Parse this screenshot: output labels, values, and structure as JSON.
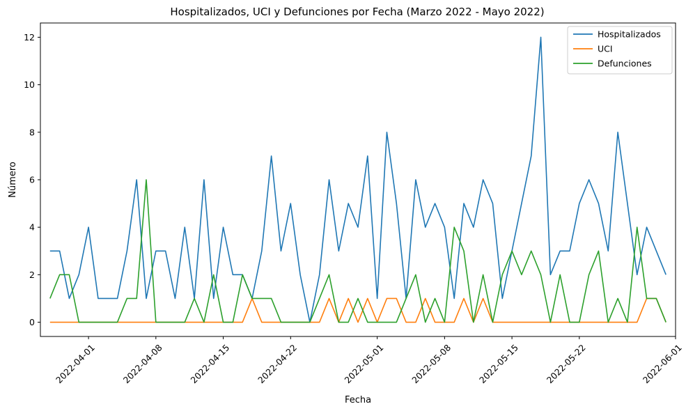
{
  "chart_data": {
    "type": "line",
    "title": "Hospitalizados, UCI y Defunciones por Fecha (Marzo 2022 - Mayo 2022)",
    "xlabel": "Fecha",
    "ylabel": "Número",
    "xlim": [
      "2022-03-27",
      "2022-06-01"
    ],
    "ylim": [
      -0.6,
      12.6
    ],
    "x_ticks": [
      "2022-04-01",
      "2022-04-08",
      "2022-04-15",
      "2022-04-22",
      "2022-05-01",
      "2022-05-08",
      "2022-05-15",
      "2022-05-22",
      "2022-06-01"
    ],
    "y_ticks": [
      0,
      2,
      4,
      6,
      8,
      10,
      12
    ],
    "grid": false,
    "legend_position": "top-right",
    "x": [
      "2022-03-28",
      "2022-03-29",
      "2022-03-30",
      "2022-03-31",
      "2022-04-01",
      "2022-04-02",
      "2022-04-03",
      "2022-04-04",
      "2022-04-05",
      "2022-04-06",
      "2022-04-07",
      "2022-04-08",
      "2022-04-09",
      "2022-04-10",
      "2022-04-11",
      "2022-04-12",
      "2022-04-13",
      "2022-04-14",
      "2022-04-15",
      "2022-04-16",
      "2022-04-17",
      "2022-04-18",
      "2022-04-19",
      "2022-04-20",
      "2022-04-21",
      "2022-04-22",
      "2022-04-23",
      "2022-04-24",
      "2022-04-25",
      "2022-04-26",
      "2022-04-27",
      "2022-04-28",
      "2022-04-29",
      "2022-04-30",
      "2022-05-01",
      "2022-05-02",
      "2022-05-03",
      "2022-05-04",
      "2022-05-05",
      "2022-05-06",
      "2022-05-07",
      "2022-05-08",
      "2022-05-09",
      "2022-05-10",
      "2022-05-11",
      "2022-05-12",
      "2022-05-13",
      "2022-05-14",
      "2022-05-15",
      "2022-05-16",
      "2022-05-17",
      "2022-05-18",
      "2022-05-19",
      "2022-05-20",
      "2022-05-21",
      "2022-05-22",
      "2022-05-23",
      "2022-05-24",
      "2022-05-25",
      "2022-05-26",
      "2022-05-27",
      "2022-05-28",
      "2022-05-29",
      "2022-05-30",
      "2022-05-31"
    ],
    "series": [
      {
        "name": "Hospitalizados",
        "color": "#1f77b4",
        "values": [
          3,
          3,
          1,
          2,
          4,
          1,
          1,
          1,
          3,
          6,
          1,
          3,
          3,
          1,
          4,
          1,
          6,
          1,
          4,
          2,
          2,
          1,
          3,
          7,
          3,
          5,
          2,
          0,
          2,
          6,
          3,
          5,
          4,
          7,
          1,
          8,
          5,
          1,
          6,
          4,
          5,
          4,
          1,
          5,
          4,
          6,
          5,
          1,
          3,
          5,
          7,
          12,
          2,
          3,
          3,
          5,
          6,
          5,
          3,
          8,
          5,
          2,
          4,
          3,
          2
        ]
      },
      {
        "name": "UCI",
        "color": "#ff7f0e",
        "values": [
          0,
          0,
          0,
          0,
          0,
          0,
          0,
          0,
          0,
          0,
          0,
          0,
          0,
          0,
          0,
          0,
          0,
          0,
          0,
          0,
          0,
          1,
          0,
          0,
          0,
          0,
          0,
          0,
          0,
          1,
          0,
          1,
          0,
          1,
          0,
          1,
          1,
          0,
          0,
          1,
          0,
          0,
          0,
          1,
          0,
          1,
          0,
          0,
          0,
          0,
          0,
          0,
          0,
          0,
          0,
          0,
          0,
          0,
          0,
          0,
          0,
          0,
          1,
          1,
          0
        ]
      },
      {
        "name": "Defunciones",
        "color": "#2ca02c",
        "values": [
          1,
          2,
          2,
          0,
          0,
          0,
          0,
          0,
          1,
          1,
          6,
          0,
          0,
          0,
          0,
          1,
          0,
          2,
          0,
          0,
          2,
          1,
          1,
          1,
          0,
          0,
          0,
          0,
          1,
          2,
          0,
          0,
          1,
          0,
          0,
          0,
          0,
          1,
          2,
          0,
          1,
          0,
          4,
          3,
          0,
          2,
          0,
          2,
          3,
          2,
          3,
          2,
          0,
          2,
          0,
          0,
          2,
          3,
          0,
          1,
          0,
          4,
          1,
          1,
          0
        ]
      }
    ]
  }
}
